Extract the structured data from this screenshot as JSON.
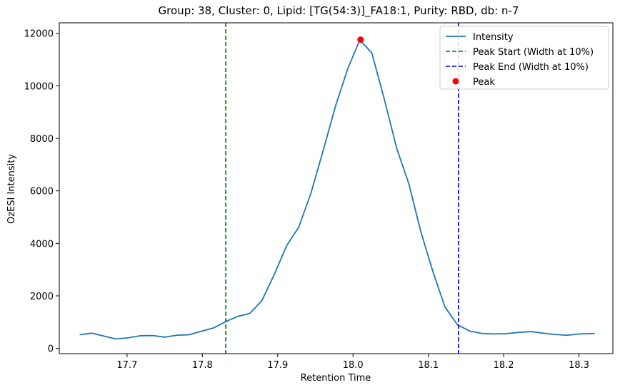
{
  "chart_data": {
    "type": "line",
    "title": "Group: 38, Cluster: 0, Lipid: [TG(54:3)]_FA18:1, Purity: RBD, db: n-7",
    "xlabel": "Retention Time",
    "ylabel": "OzESI Intensity",
    "xlim": [
      17.61,
      18.345
    ],
    "ylim": [
      -200,
      12400
    ],
    "x_ticks": [
      17.7,
      17.8,
      17.9,
      18.0,
      18.1,
      18.2,
      18.3
    ],
    "y_ticks": [
      0,
      2000,
      4000,
      6000,
      8000,
      10000,
      12000
    ],
    "x_tick_labels": [
      "17.7",
      "17.8",
      "17.9",
      "18.0",
      "18.1",
      "18.2",
      "18.3"
    ],
    "y_tick_labels": [
      "0",
      "2000",
      "4000",
      "6000",
      "8000",
      "10000",
      "12000"
    ],
    "legend_position": "top-right",
    "legend": [
      {
        "label": "Intensity",
        "kind": "line",
        "color": "#1f77b4"
      },
      {
        "label": "Peak Start (Width at 10%)",
        "kind": "dashed",
        "color": "#008000"
      },
      {
        "label": "Peak End (Width at 10%)",
        "kind": "dashed",
        "color": "#0000cc"
      },
      {
        "label": "Peak",
        "kind": "marker",
        "color": "#ff0000"
      }
    ],
    "series": [
      {
        "name": "Intensity",
        "color": "#1f77b4",
        "x": [
          17.637,
          17.653,
          17.685,
          17.701,
          17.717,
          17.734,
          17.75,
          17.766,
          17.782,
          17.798,
          17.815,
          17.831,
          17.847,
          17.863,
          17.879,
          17.896,
          17.912,
          17.928,
          17.944,
          17.96,
          17.977,
          17.993,
          18.009,
          18.025,
          18.041,
          18.058,
          18.074,
          18.09,
          18.106,
          18.122,
          18.139,
          18.155,
          18.171,
          18.187,
          18.203,
          18.22,
          18.236,
          18.252,
          18.268,
          18.284,
          18.301,
          18.321
        ],
        "y": [
          520,
          580,
          360,
          400,
          480,
          490,
          430,
          500,
          520,
          650,
          780,
          1020,
          1220,
          1330,
          1820,
          2850,
          3920,
          4620,
          5900,
          7500,
          9250,
          10650,
          11750,
          11250,
          9550,
          7620,
          6280,
          4450,
          2930,
          1580,
          890,
          660,
          570,
          550,
          560,
          610,
          640,
          580,
          530,
          500,
          550,
          570
        ]
      }
    ],
    "vlines": [
      {
        "name": "Peak Start (Width at 10%)",
        "x": 17.831,
        "color": "#008000"
      },
      {
        "name": "Peak End (Width at 10%)",
        "x": 18.14,
        "color": "#0000cc"
      }
    ],
    "peak": {
      "name": "Peak",
      "x": 18.01,
      "y": 11760,
      "color": "#ff0000"
    }
  }
}
